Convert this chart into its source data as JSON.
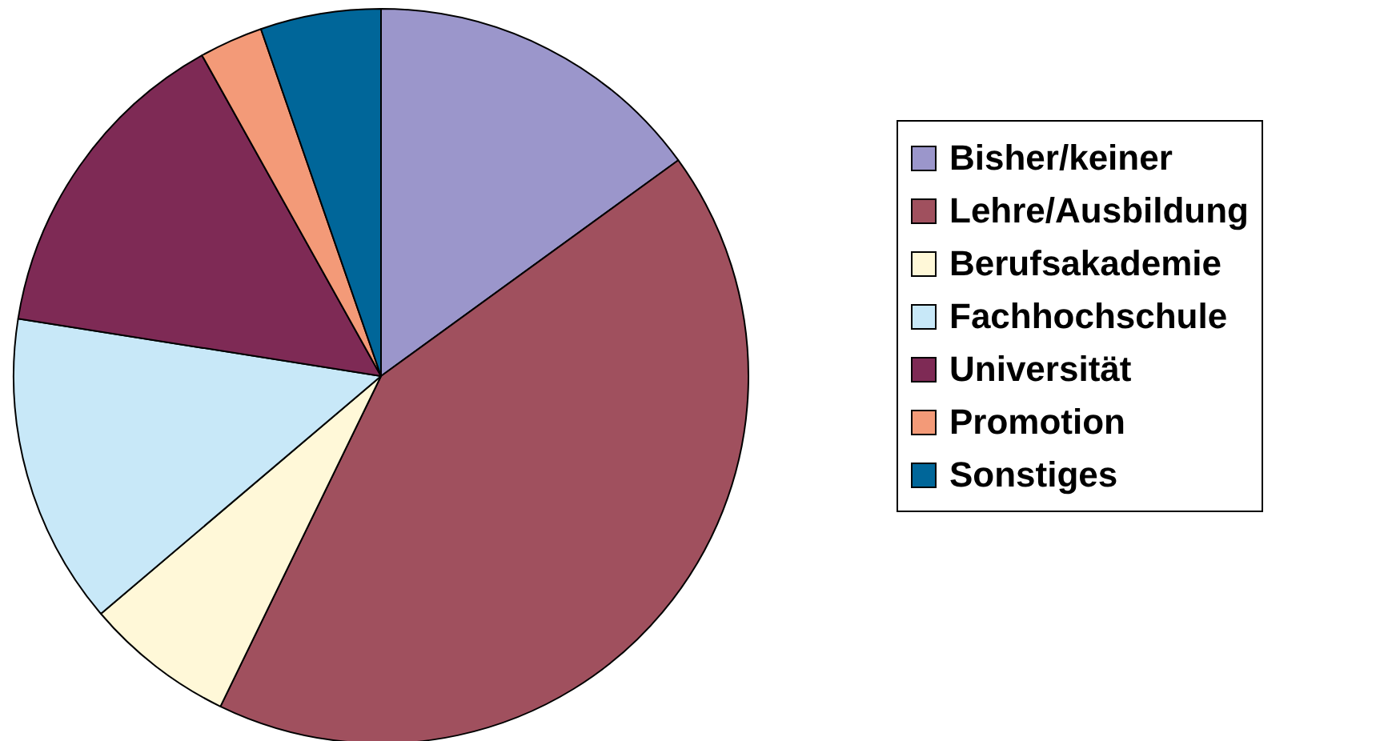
{
  "chart_data": {
    "type": "pie",
    "categories": [
      "Bisher/keiner",
      "Lehre/Ausbildung",
      "Berufsakademie",
      "Fachhochschule",
      "Universität",
      "Promotion",
      "Sonstiges"
    ],
    "values": [
      15,
      42.2,
      6.6,
      13.7,
      14.4,
      2.8,
      5.3
    ],
    "colors": [
      "#9b96cb",
      "#a0505e",
      "#fff8d8",
      "#c8e8f8",
      "#7e2a55",
      "#f39a78",
      "#006699"
    ],
    "legend": "right"
  }
}
